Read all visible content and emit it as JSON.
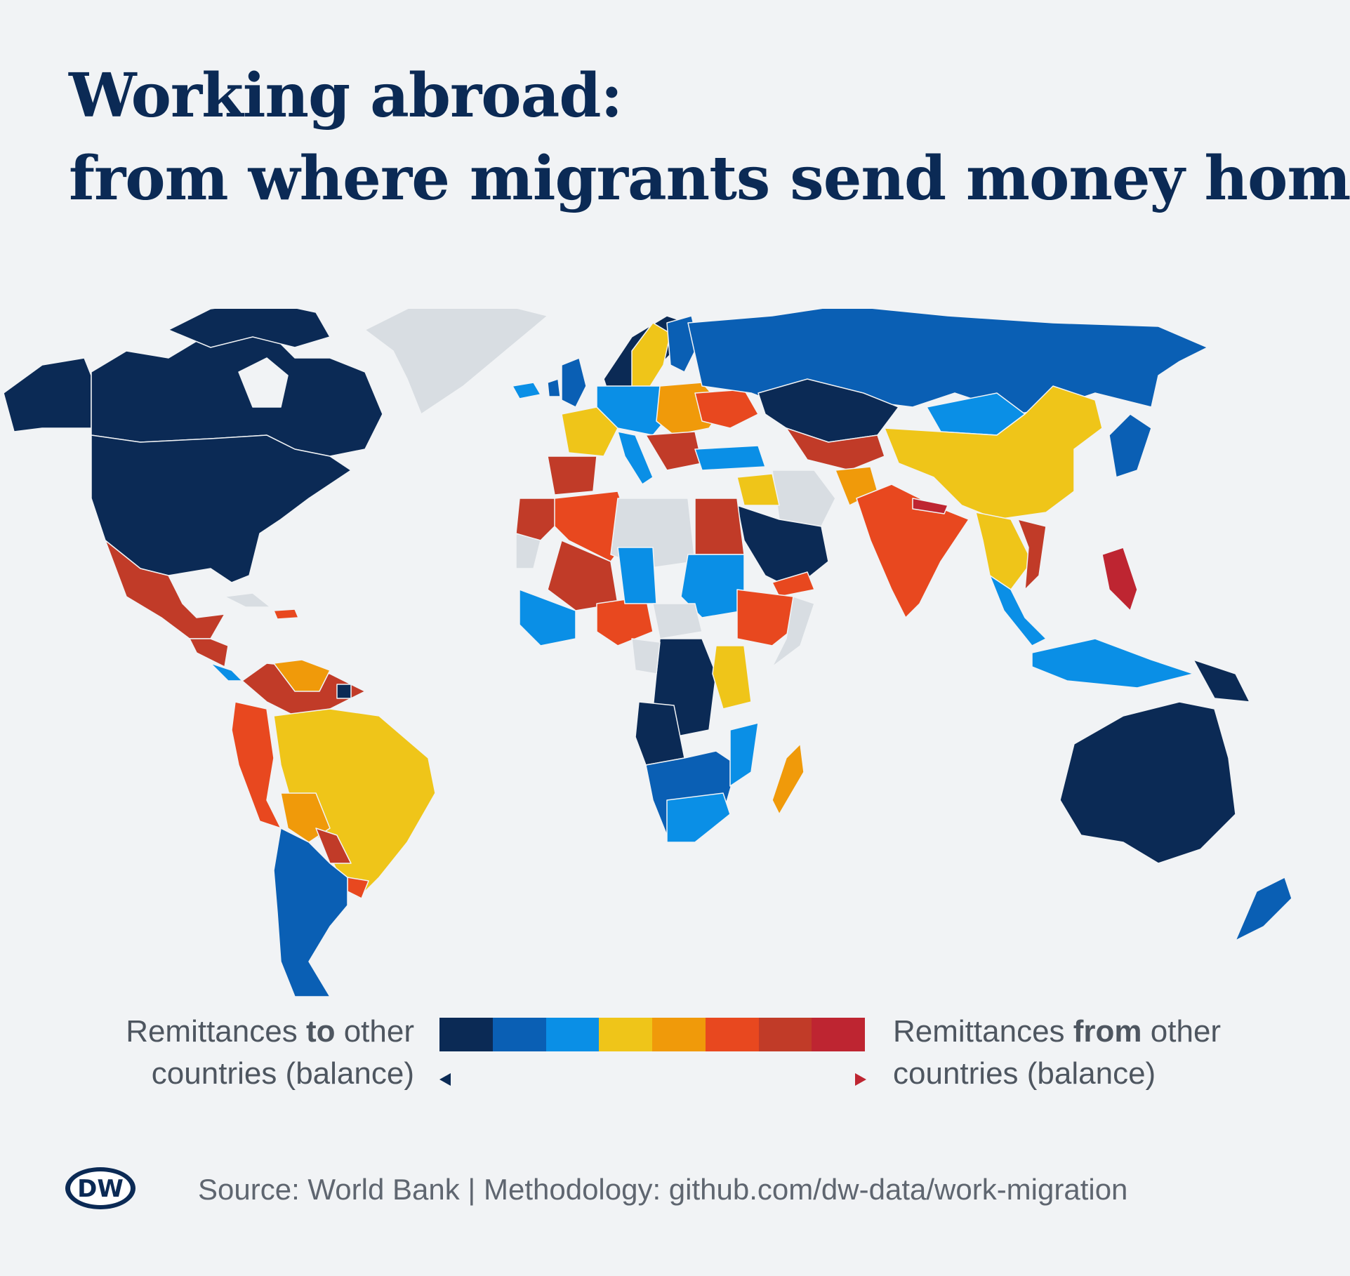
{
  "title": {
    "line1": "Working abroad:",
    "line2": "from where migrants send money home"
  },
  "legend": {
    "left_pre": "Remittances ",
    "left_bold": "to",
    "left_post": " other",
    "left_line2": "countries (balance)",
    "right_pre": "Remittances ",
    "right_bold": "from",
    "right_post": " other",
    "right_line2": "countries (balance)",
    "scale_colors": [
      "#0b2a55",
      "#0a5fb4",
      "#0a8fe6",
      "#efc519",
      "#f09a0a",
      "#e8481f",
      "#c13b28",
      "#be2531"
    ],
    "no_data_color": "#d8dde2"
  },
  "source": "Source: World Bank | Methodology: github.com/dw-data/work-migration",
  "logo": {
    "text": "DW",
    "icon": "dw-logo-icon"
  },
  "chart_data": {
    "type": "choropleth",
    "scale": "diverging",
    "categories_by_color": {
      "strong_net_sender": [
        "United States",
        "Canada",
        "Saudi Arabia",
        "Kazakhstan",
        "Australia",
        "Norway",
        "Switzerland",
        "Oman",
        "Kuwait",
        "DR Congo",
        "Angola",
        "Papua New Guinea",
        "Suriname",
        "Luxembourg"
      ],
      "net_sender": [
        "Russia",
        "Argentina",
        "Chile",
        "Mozambique",
        "Zambia",
        "Zimbabwe",
        "Namibia",
        "Ireland",
        "Germany",
        "Mongolia",
        "Japan",
        "Indonesia",
        "New Zealand",
        "Malaysia",
        "Iceland",
        "Finland"
      ],
      "slight_sender": [
        "Mali",
        "Sudan",
        "Turkey",
        "Thailand",
        "Botswana",
        "South Africa",
        "Italy",
        "Austria",
        "Cote d'Ivoire",
        "Costa Rica"
      ],
      "slight_receiver": [
        "China",
        "Brazil",
        "France",
        "Sweden",
        "Myanmar",
        "Kenya",
        "Tanzania",
        "Burkina Faso",
        "Iraq"
      ],
      "receiver": [
        "Afghanistan",
        "Venezuela",
        "Bolivia",
        "Madagascar",
        "Romania",
        "Hungary",
        "Belarus",
        "Lithuania",
        "Chad"
      ],
      "strong_receiver": [
        "India",
        "Algeria",
        "Nigeria",
        "Ethiopia",
        "Egypt",
        "Peru",
        "Paraguay",
        "Uruguay",
        "Yemen",
        "Ukraine",
        "Cuba"
      ],
      "very_strong_receiver": [
        "Mexico",
        "Colombia",
        "Ecuador",
        "Morocco",
        "Spain",
        "Portugal",
        "Pakistan",
        "Niger",
        "Guatemala",
        "Somalia",
        "Uzbekistan",
        "Vietnam"
      ],
      "extreme_receiver": [
        "Philippines",
        "Lesotho",
        "Haiti",
        "Fiji",
        "Nepal"
      ],
      "no_data": [
        "Greenland",
        "Libya",
        "Iran",
        "Western Sahara",
        "Central African Republic",
        "Gabon",
        "Congo",
        "North Korea",
        "Taiwan",
        "Eritrea"
      ]
    }
  }
}
